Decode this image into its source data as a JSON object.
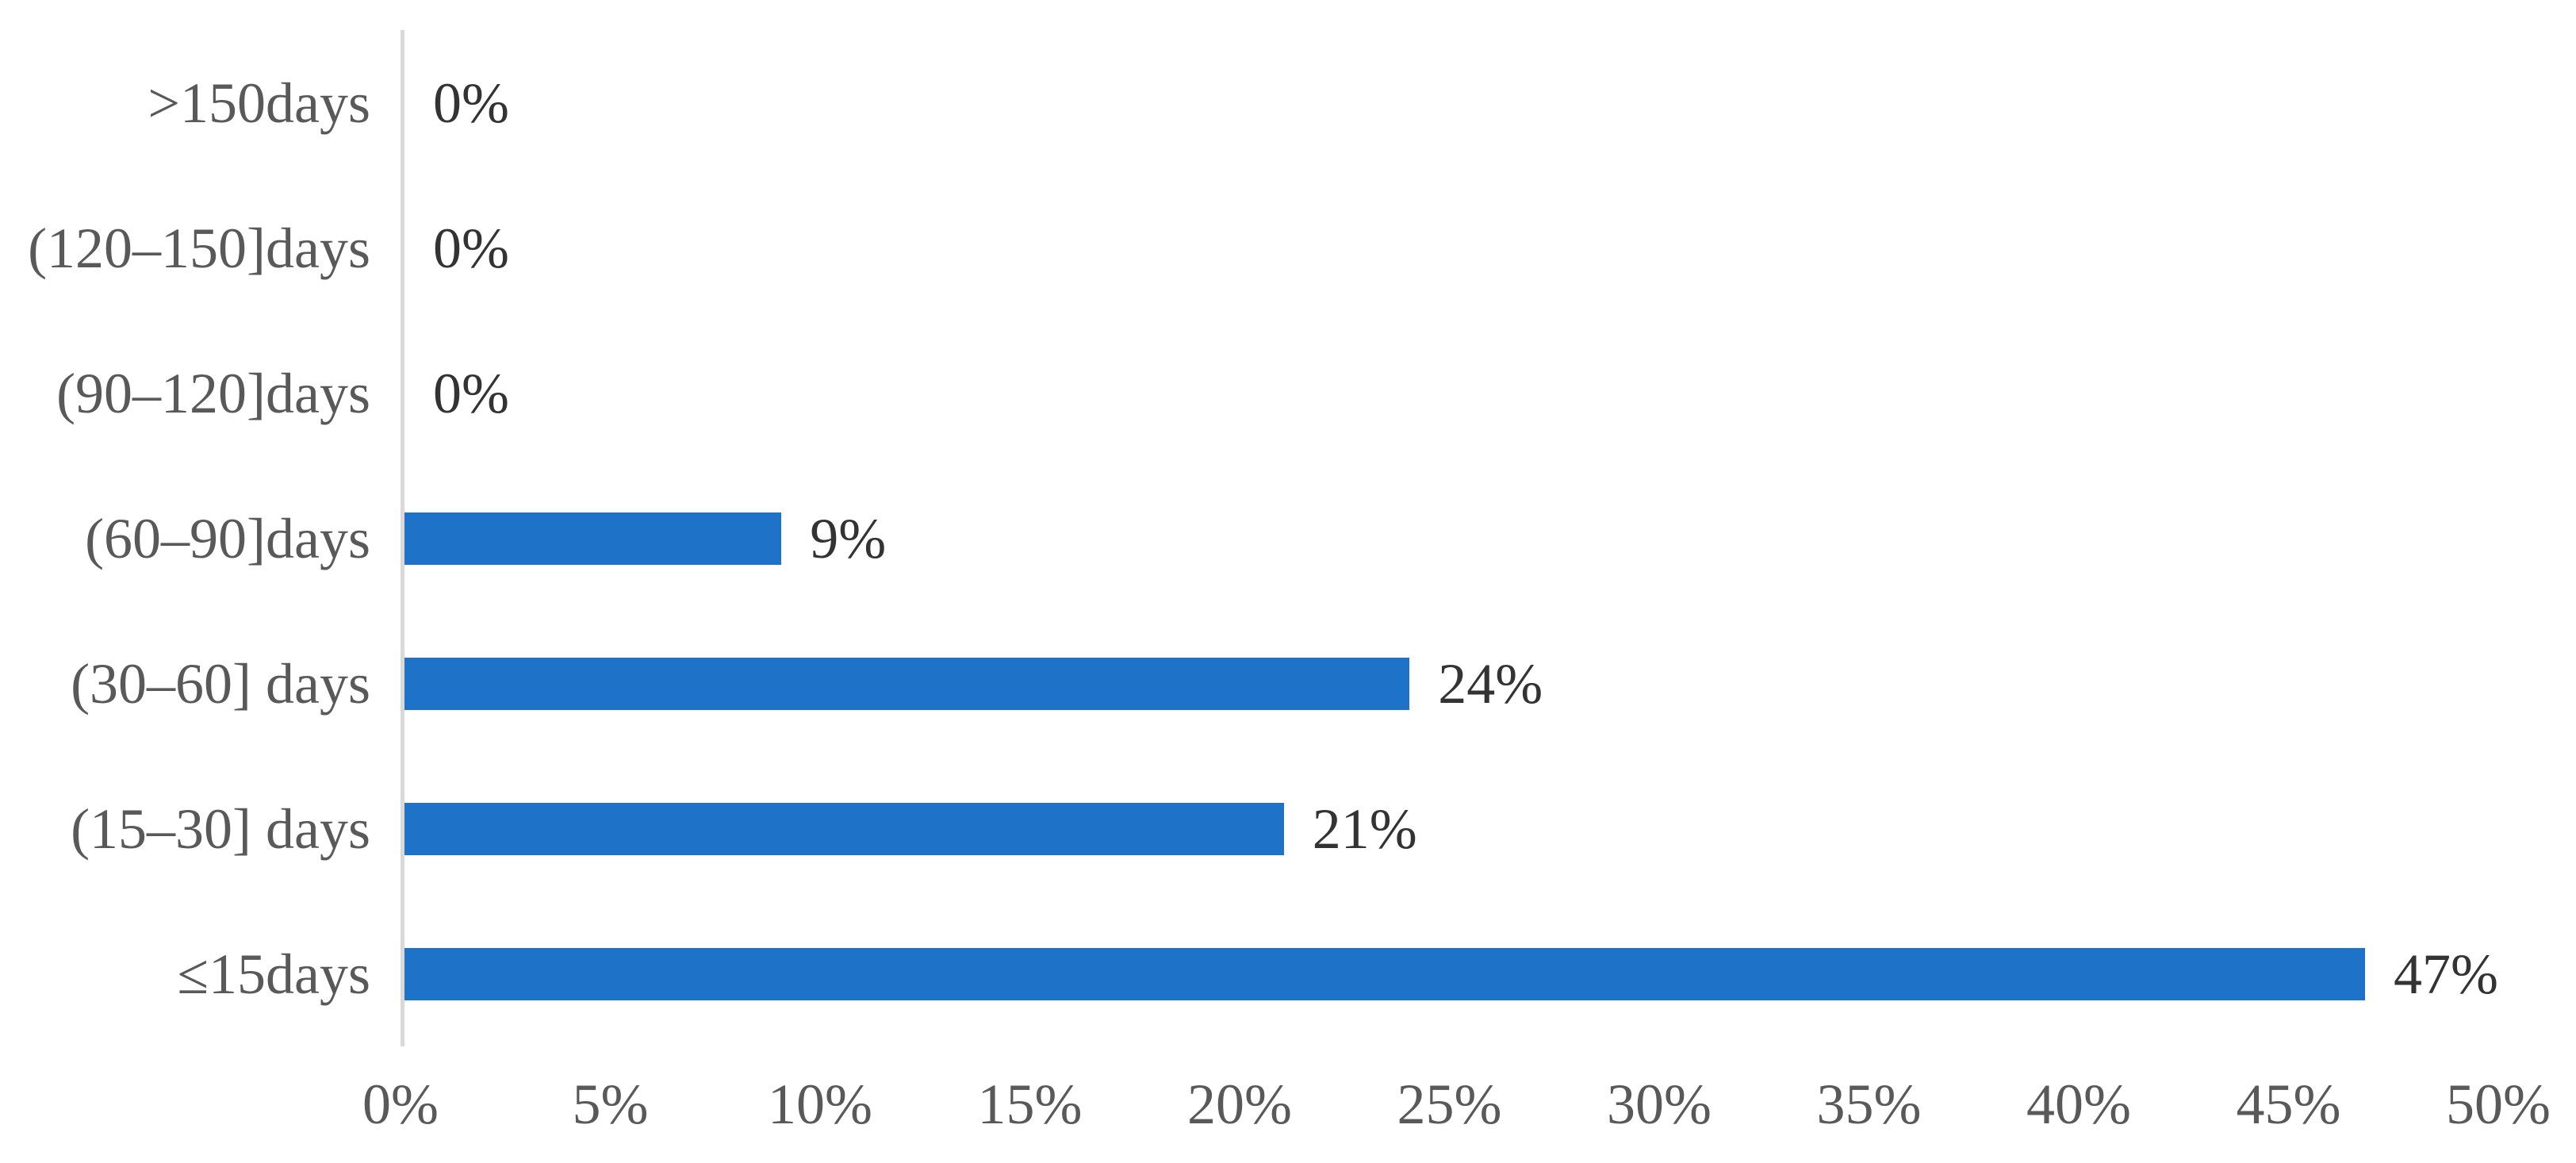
{
  "chart_data": {
    "type": "bar",
    "orientation": "horizontal",
    "title": "",
    "xlabel": "",
    "ylabel": "",
    "categories": [
      ">150days",
      "(120–150]days",
      "(90–120]days",
      "(60–90]days",
      "(30–60] days",
      "(15–30] days",
      "≤15days"
    ],
    "values": [
      0,
      0,
      0,
      9,
      24,
      21,
      47
    ],
    "value_labels": [
      "0%",
      "0%",
      "0%",
      "9%",
      "24%",
      "21%",
      "47%"
    ],
    "xlim": [
      0,
      50
    ],
    "x_ticks": [
      "0%",
      "5%",
      "10%",
      "15%",
      "20%",
      "25%",
      "30%",
      "35%",
      "40%",
      "45%",
      "50%"
    ],
    "grid": "off",
    "legend": "none",
    "colors": {
      "bar": "#1E73C8",
      "axis_line": "#D9D9D9",
      "category_label": "#595959",
      "tick_label": "#595959",
      "value_label": "#333333"
    }
  }
}
